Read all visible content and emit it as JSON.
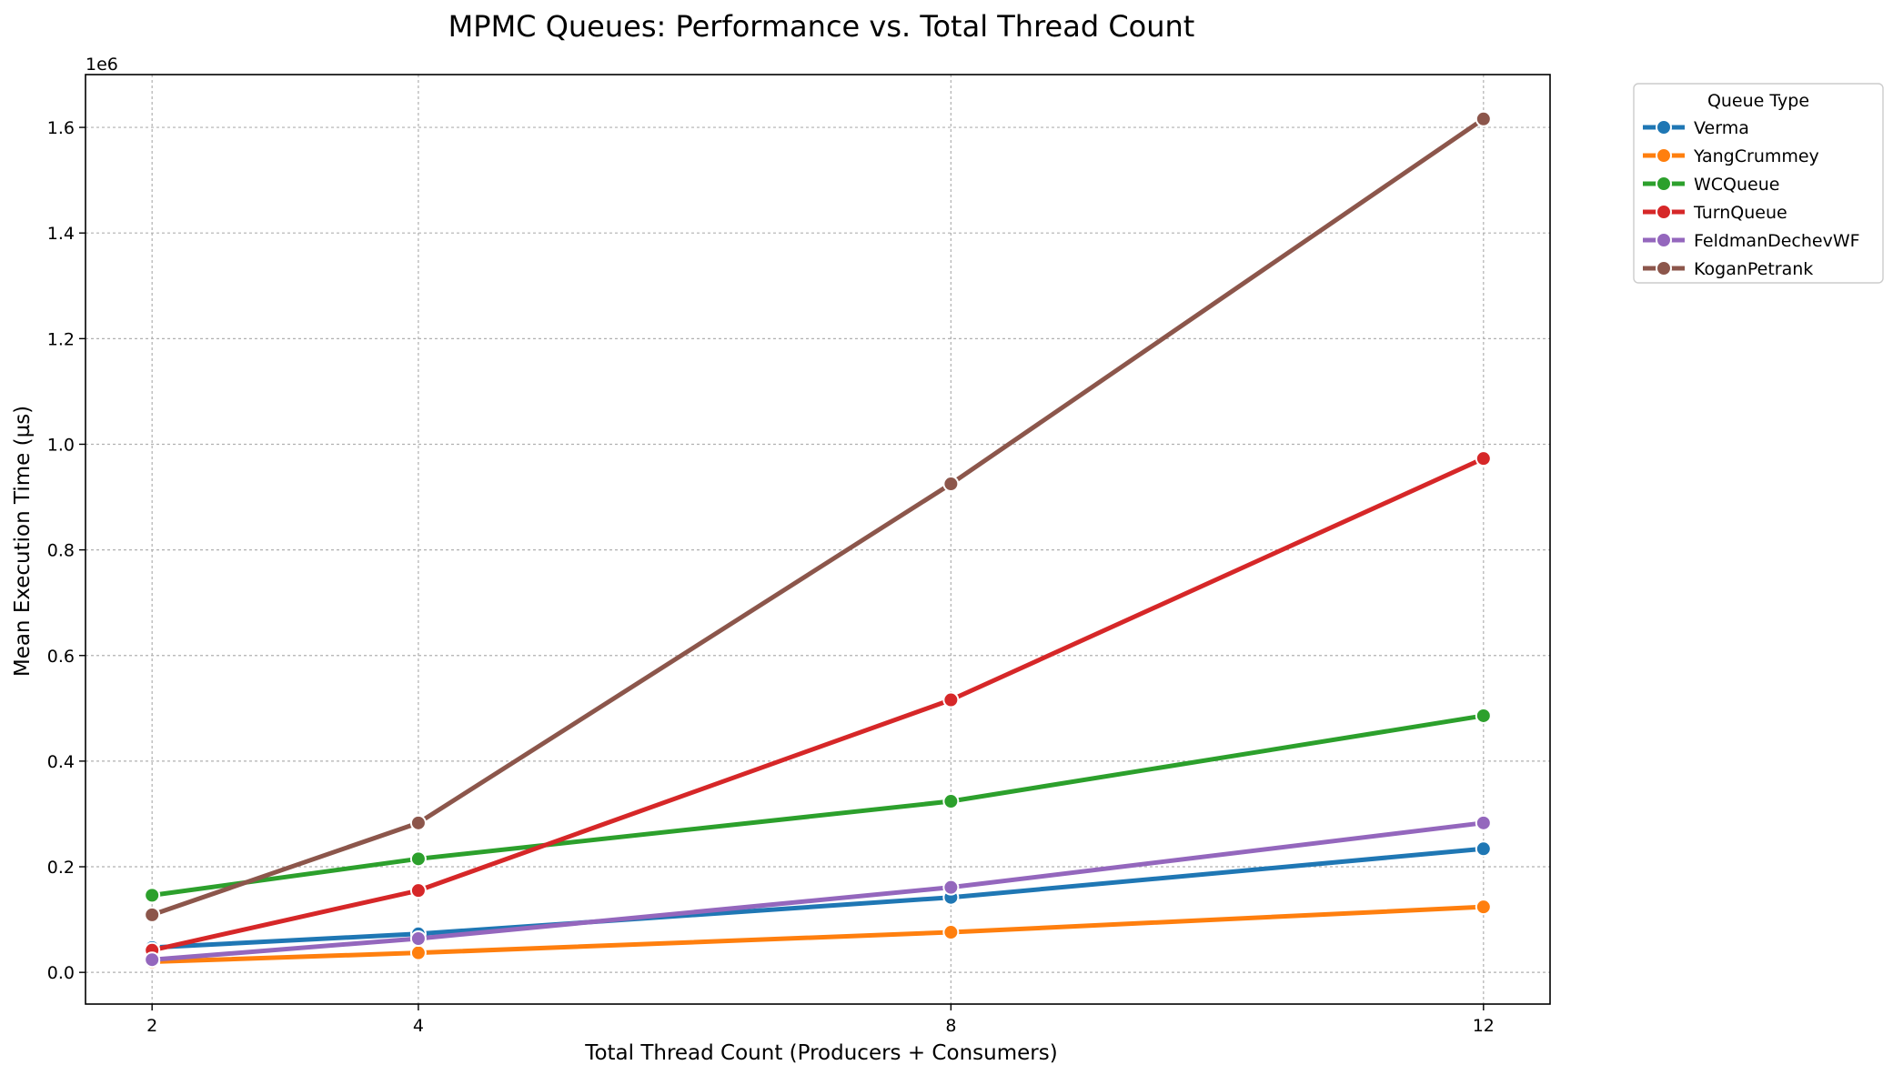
{
  "chart_data": {
    "type": "line",
    "title": "MPMC Queues: Performance vs. Total Thread Count",
    "xlabel": "Total Thread Count (Producers + Consumers)",
    "ylabel": "Mean Execution Time (µs)",
    "y_offset_label": "1e6",
    "x": [
      2,
      4,
      8,
      12
    ],
    "x_ticks": [
      "2",
      "4",
      "8",
      "12"
    ],
    "xlim": [
      1.5,
      12.5
    ],
    "ylim": [
      -60000,
      1700000
    ],
    "y_ticks": [
      0,
      200000,
      400000,
      600000,
      800000,
      1000000,
      1200000,
      1400000,
      1600000
    ],
    "y_tick_labels": [
      "0.0",
      "0.2",
      "0.4",
      "0.6",
      "0.8",
      "1.0",
      "1.2",
      "1.4",
      "1.6"
    ],
    "grid": true,
    "legend": {
      "title": "Queue Type",
      "placement": "outside-top-right"
    },
    "series": [
      {
        "name": "Verma",
        "color": "#1f77b4",
        "values": [
          47000,
          73000,
          142000,
          234000
        ]
      },
      {
        "name": "YangCrummey",
        "color": "#ff7f0e",
        "values": [
          20000,
          37000,
          76000,
          124000
        ]
      },
      {
        "name": "WCQueue",
        "color": "#2ca02c",
        "values": [
          146000,
          215000,
          324000,
          486000
        ]
      },
      {
        "name": "TurnQueue",
        "color": "#d62728",
        "values": [
          42000,
          155000,
          516000,
          973000
        ]
      },
      {
        "name": "FeldmanDechevWF",
        "color": "#9467bd",
        "values": [
          24000,
          64000,
          161000,
          283000
        ]
      },
      {
        "name": "KoganPetrank",
        "color": "#8c564b",
        "values": [
          109000,
          283000,
          925000,
          1616000
        ]
      }
    ]
  }
}
